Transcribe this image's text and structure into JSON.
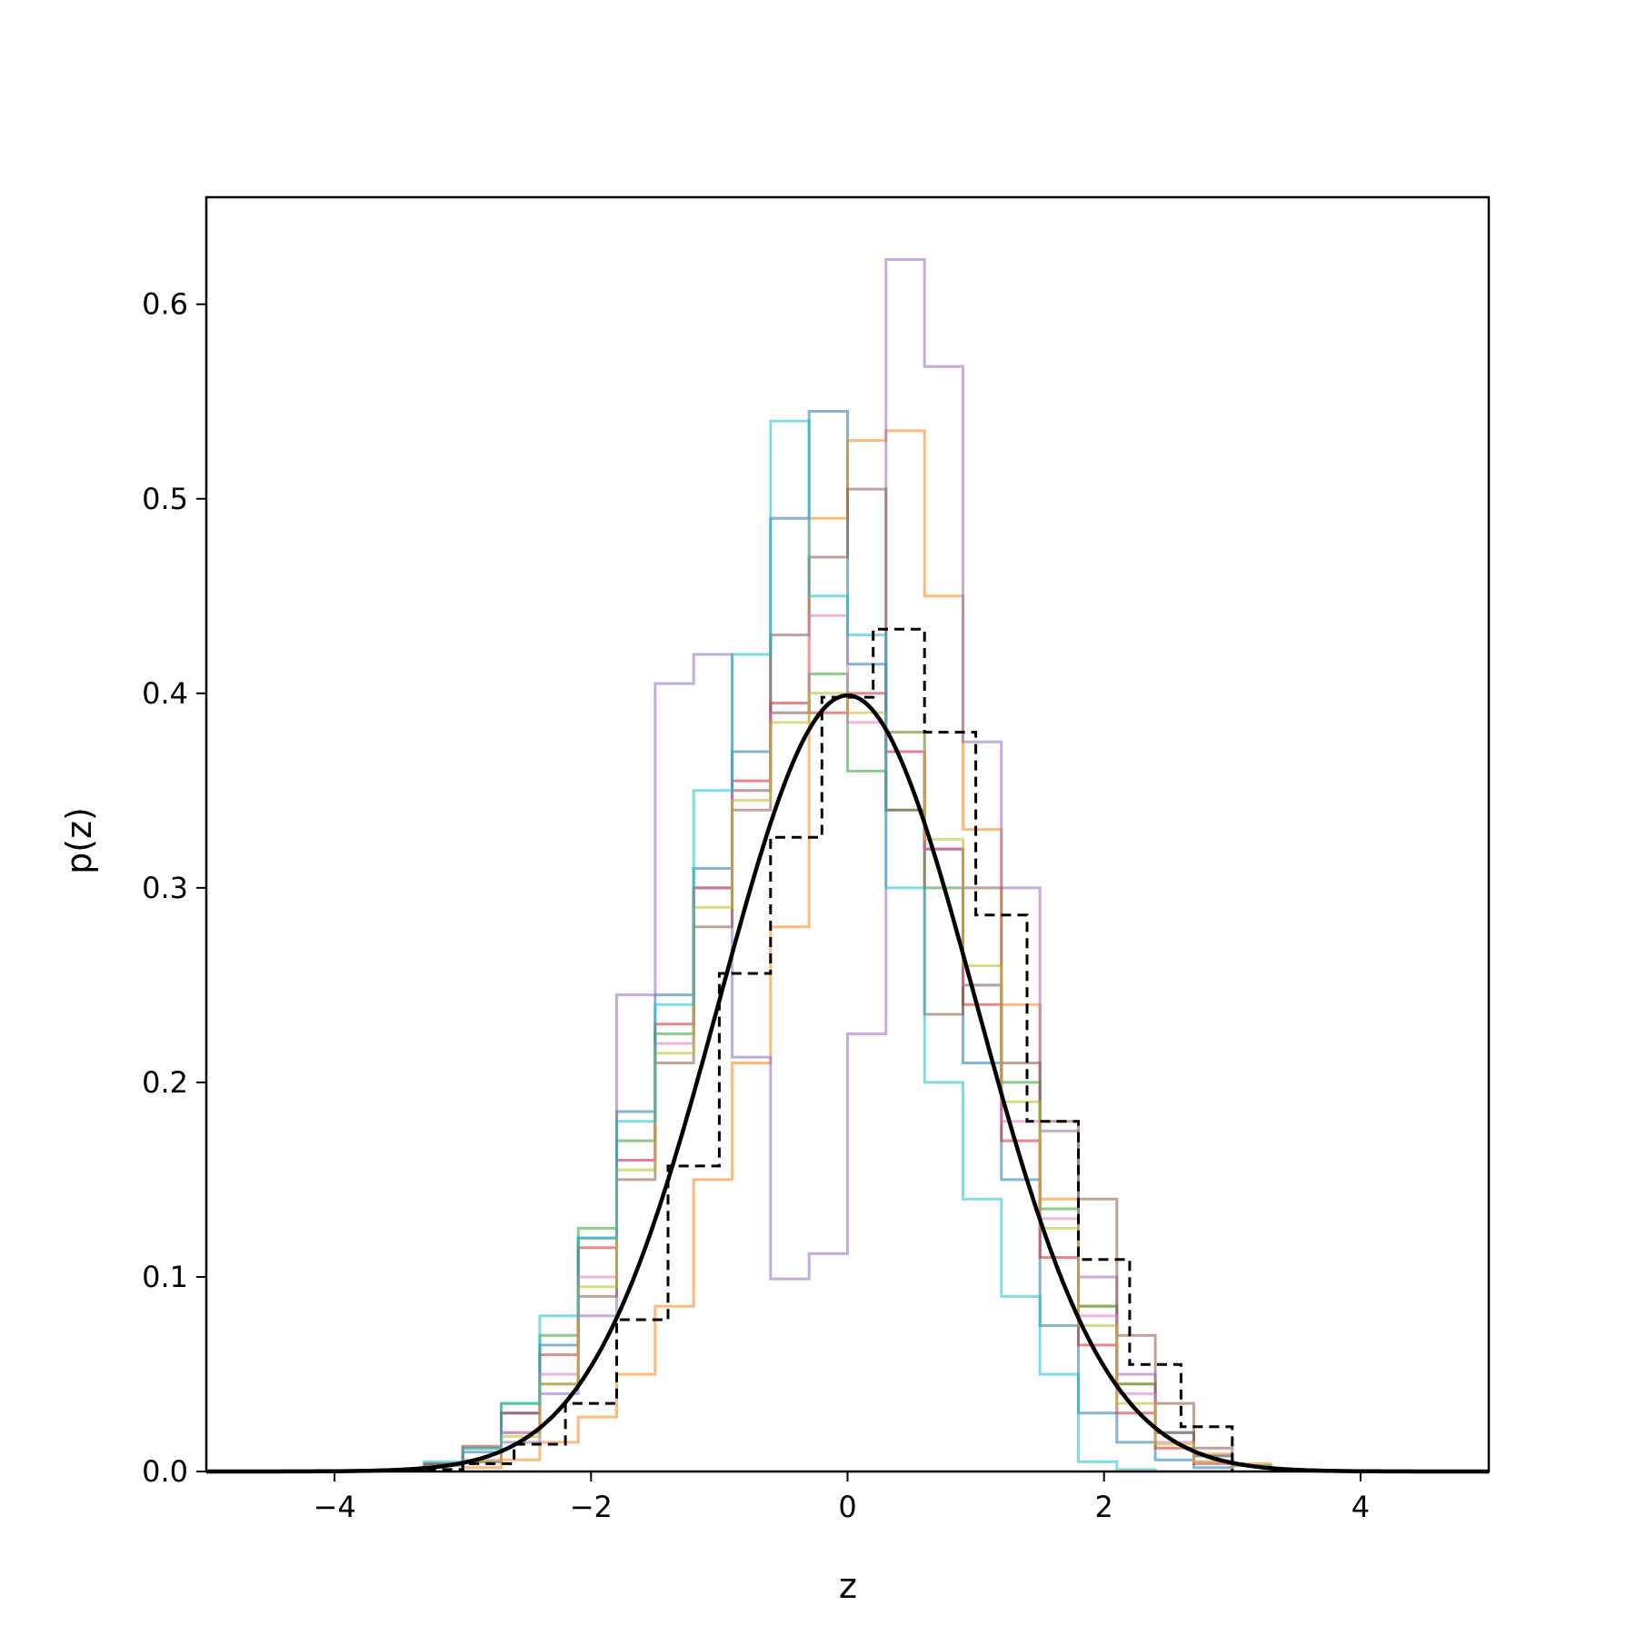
{
  "chart_data": {
    "type": "histogram",
    "xlabel": "z",
    "ylabel": "p(z)",
    "xlim": [
      -5,
      5
    ],
    "ylim": [
      0,
      0.655
    ],
    "x_ticks": [
      {
        "value": -4,
        "label": "−4"
      },
      {
        "value": -2,
        "label": "−2"
      },
      {
        "value": 0,
        "label": "0"
      },
      {
        "value": 2,
        "label": "2"
      },
      {
        "value": 4,
        "label": "4"
      }
    ],
    "y_ticks": [
      {
        "value": 0.0,
        "label": "0.0"
      },
      {
        "value": 0.1,
        "label": "0.1"
      },
      {
        "value": 0.2,
        "label": "0.2"
      },
      {
        "value": 0.3,
        "label": "0.3"
      },
      {
        "value": 0.4,
        "label": "0.4"
      },
      {
        "value": 0.5,
        "label": "0.5"
      },
      {
        "value": 0.6,
        "label": "0.6"
      }
    ],
    "grid": false,
    "series": [
      {
        "color": "#1f77b4",
        "edges": [
          -3.6,
          -3.3,
          -3.0,
          -2.7,
          -2.4,
          -2.1,
          -1.8,
          -1.5,
          -1.2,
          -0.9,
          -0.6,
          -0.3,
          0.0,
          0.3,
          0.6,
          0.9,
          1.2,
          1.5,
          1.8,
          2.1,
          2.4,
          2.7,
          3.0
        ],
        "values": [
          0.001,
          0.004,
          0.01,
          0.03,
          0.065,
          0.12,
          0.185,
          0.245,
          0.31,
          0.37,
          0.49,
          0.545,
          0.415,
          0.38,
          0.32,
          0.21,
          0.15,
          0.075,
          0.03,
          0.015,
          0.006,
          0.002
        ]
      },
      {
        "color": "#ff7f0e",
        "edges": [
          -3.0,
          -2.7,
          -2.4,
          -2.1,
          -1.8,
          -1.5,
          -1.2,
          -0.9,
          -0.6,
          -0.3,
          0.0,
          0.3,
          0.6,
          0.9,
          1.2,
          1.5,
          1.8,
          2.1,
          2.4,
          2.7,
          3.0,
          3.3
        ],
        "values": [
          0.002,
          0.006,
          0.015,
          0.028,
          0.05,
          0.085,
          0.15,
          0.21,
          0.28,
          0.49,
          0.53,
          0.535,
          0.45,
          0.33,
          0.24,
          0.14,
          0.085,
          0.045,
          0.02,
          0.009,
          0.004
        ]
      },
      {
        "color": "#2ca02c",
        "edges": [
          -3.3,
          -3.0,
          -2.7,
          -2.4,
          -2.1,
          -1.8,
          -1.5,
          -1.2,
          -0.9,
          -0.6,
          -0.3,
          0.0,
          0.3,
          0.6,
          0.9,
          1.2,
          1.5,
          1.8,
          2.1,
          2.4,
          2.7,
          3.0,
          3.3
        ],
        "values": [
          0.003,
          0.012,
          0.035,
          0.07,
          0.125,
          0.17,
          0.225,
          0.3,
          0.35,
          0.39,
          0.41,
          0.36,
          0.34,
          0.3,
          0.25,
          0.2,
          0.135,
          0.085,
          0.045,
          0.02,
          0.008,
          0.003
        ]
      },
      {
        "color": "#d62728",
        "edges": [
          -3.3,
          -3.0,
          -2.7,
          -2.4,
          -2.1,
          -1.8,
          -1.5,
          -1.2,
          -0.9,
          -0.6,
          -0.3,
          0.0,
          0.3,
          0.6,
          0.9,
          1.2,
          1.5,
          1.8,
          2.1,
          2.4,
          2.7,
          3.0
        ],
        "values": [
          0.004,
          0.013,
          0.03,
          0.06,
          0.115,
          0.16,
          0.23,
          0.3,
          0.355,
          0.395,
          0.39,
          0.4,
          0.37,
          0.32,
          0.24,
          0.17,
          0.11,
          0.065,
          0.03,
          0.012,
          0.004
        ]
      },
      {
        "color": "#9467bd",
        "edges": [
          -3.0,
          -2.7,
          -2.4,
          -2.1,
          -1.8,
          -1.5,
          -1.2,
          -0.9,
          -0.6,
          -0.3,
          0.0,
          0.3,
          0.6,
          0.9,
          1.2,
          1.5,
          1.8,
          2.1,
          2.4,
          2.7,
          3.0
        ],
        "values": [
          0.005,
          0.015,
          0.04,
          0.08,
          0.245,
          0.405,
          0.42,
          0.213,
          0.099,
          0.112,
          0.225,
          0.623,
          0.568,
          0.375,
          0.3,
          0.175,
          0.1,
          0.05,
          0.02,
          0.008
        ]
      },
      {
        "color": "#8c564b",
        "edges": [
          -3.0,
          -2.7,
          -2.4,
          -2.1,
          -1.8,
          -1.5,
          -1.2,
          -0.9,
          -0.6,
          -0.3,
          0.0,
          0.3,
          0.6,
          0.9,
          1.2,
          1.5,
          1.8,
          2.1,
          2.4,
          2.7,
          3.0
        ],
        "values": [
          0.005,
          0.02,
          0.045,
          0.09,
          0.15,
          0.21,
          0.28,
          0.34,
          0.43,
          0.47,
          0.505,
          0.34,
          0.235,
          0.3,
          0.21,
          0.18,
          0.14,
          0.07,
          0.035,
          0.012
        ]
      },
      {
        "color": "#e377c2",
        "edges": [
          -3.0,
          -2.7,
          -2.4,
          -2.1,
          -1.8,
          -1.5,
          -1.2,
          -0.9,
          -0.6,
          -0.3,
          0.0,
          0.3,
          0.6,
          0.9,
          1.2,
          1.5,
          1.8,
          2.1,
          2.4,
          2.7,
          3.0
        ],
        "values": [
          0.006,
          0.02,
          0.05,
          0.1,
          0.16,
          0.22,
          0.3,
          0.35,
          0.39,
          0.44,
          0.385,
          0.37,
          0.32,
          0.25,
          0.18,
          0.13,
          0.08,
          0.04,
          0.015,
          0.005
        ]
      },
      {
        "color": "#bcbd22",
        "edges": [
          -3.0,
          -2.7,
          -2.4,
          -2.1,
          -1.8,
          -1.5,
          -1.2,
          -0.9,
          -0.6,
          -0.3,
          0.0,
          0.3,
          0.6,
          0.9,
          1.2,
          1.5,
          1.8,
          2.1,
          2.4,
          2.7,
          3.0
        ],
        "values": [
          0.005,
          0.018,
          0.045,
          0.095,
          0.155,
          0.215,
          0.29,
          0.345,
          0.385,
          0.4,
          0.39,
          0.38,
          0.325,
          0.26,
          0.19,
          0.125,
          0.075,
          0.035,
          0.014,
          0.005
        ]
      },
      {
        "color": "#17becf",
        "edges": [
          -3.6,
          -3.3,
          -3.0,
          -2.7,
          -2.4,
          -2.1,
          -1.8,
          -1.5,
          -1.2,
          -0.9,
          -0.6,
          -0.3,
          0.0,
          0.3,
          0.6,
          0.9,
          1.2,
          1.5,
          1.8,
          2.1,
          2.4
        ],
        "values": [
          0.001,
          0.005,
          0.012,
          0.035,
          0.08,
          0.12,
          0.18,
          0.24,
          0.35,
          0.42,
          0.54,
          0.45,
          0.43,
          0.3,
          0.2,
          0.14,
          0.09,
          0.05,
          0.005,
          0.001
        ]
      }
    ],
    "reference_hist": {
      "style": "dashed",
      "color": "#000000",
      "edges": [
        -3.4,
        -3.0,
        -2.6,
        -2.2,
        -1.8,
        -1.4,
        -1.0,
        -0.6,
        -0.2,
        0.2,
        0.6,
        1.0,
        1.4,
        1.8,
        2.2,
        2.6,
        3.0
      ],
      "values": [
        0.001,
        0.004,
        0.014,
        0.035,
        0.078,
        0.157,
        0.256,
        0.326,
        0.398,
        0.433,
        0.38,
        0.286,
        0.18,
        0.109,
        0.055,
        0.023
      ]
    },
    "curve": {
      "type": "normal_pdf",
      "mean": 0,
      "std": 1,
      "color": "#000000",
      "x_range": [
        -5,
        5
      ]
    }
  }
}
